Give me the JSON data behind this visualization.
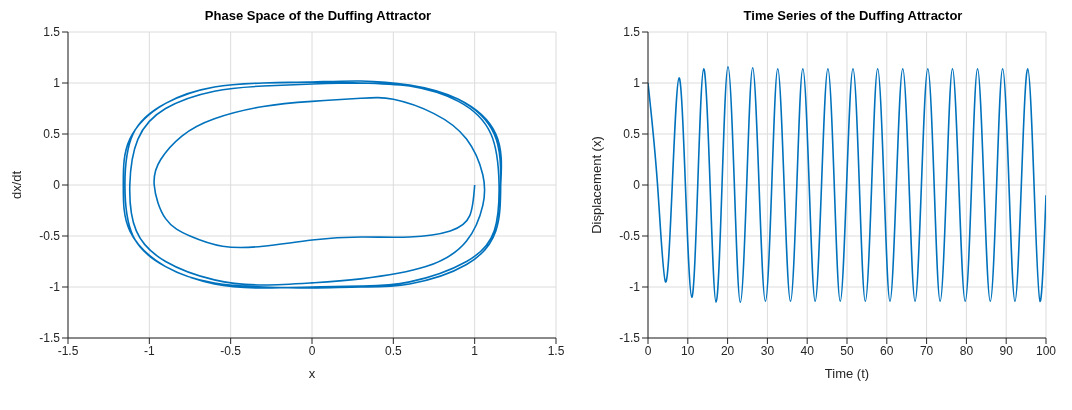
{
  "chart_data": [
    {
      "type": "line",
      "title": "Phase Space of the Duffing Attractor",
      "xlabel": "x",
      "ylabel": "dx/dt",
      "xlim": [
        -1.5,
        1.5
      ],
      "ylim": [
        -1.5,
        1.5
      ],
      "xticks": [
        -1.5,
        -1,
        -0.5,
        0,
        0.5,
        1,
        1.5
      ],
      "yticks": [
        -1.5,
        -1,
        -0.5,
        0,
        0.5,
        1,
        1.5
      ],
      "grid": true,
      "series": [
        {
          "color": "#0072bd",
          "x": [
            1,
            0.97,
            0.85,
            0.6,
            0.3,
            0,
            -0.3,
            -0.55,
            -0.75,
            -0.9,
            -0.97,
            -0.93,
            -0.8,
            -0.6,
            -0.3,
            0,
            0.3,
            0.5,
            0.75,
            0.95,
            1.05,
            1.05,
            0.95,
            0.7,
            0.3,
            0,
            -0.3,
            -0.6,
            -0.9,
            -1.08,
            -1.12,
            -1.07,
            -0.9,
            -0.6,
            -0.3,
            0,
            0.3,
            0.6,
            0.9,
            1.1,
            1.15,
            1.12,
            0.95,
            0.6,
            0.3,
            0,
            -0.3,
            -0.6,
            -0.9,
            -1.1,
            -1.15,
            -1.1,
            -0.9,
            -0.6,
            -0.3,
            0,
            0.3,
            0.6,
            0.9,
            1.12,
            1.16,
            1.13,
            0.95,
            0.6,
            0.3,
            0,
            -0.3,
            -0.6,
            -0.9,
            -1.12,
            -1.16,
            -1.12,
            -0.9,
            -0.6,
            -0.3,
            0,
            0.3,
            0.6,
            0.9,
            1.13,
            1.16
          ],
          "values": [
            0,
            -0.3,
            -0.45,
            -0.51,
            -0.51,
            -0.54,
            -0.6,
            -0.6,
            -0.5,
            -0.33,
            0,
            0.25,
            0.48,
            0.65,
            0.77,
            0.82,
            0.85,
            0.84,
            0.7,
            0.45,
            0.1,
            -0.2,
            -0.55,
            -0.8,
            -0.92,
            -0.96,
            -0.98,
            -0.93,
            -0.75,
            -0.45,
            0,
            0.45,
            0.75,
            0.92,
            0.97,
            0.99,
            1,
            0.97,
            0.82,
            0.5,
            0,
            -0.45,
            -0.75,
            -0.95,
            -0.99,
            -1,
            -1.01,
            -0.97,
            -0.8,
            -0.5,
            0,
            0.5,
            0.8,
            0.96,
            1,
            1.01,
            1.02,
            0.98,
            0.84,
            0.5,
            0,
            -0.45,
            -0.78,
            -0.97,
            -1,
            -1.01,
            -1,
            -0.96,
            -0.8,
            -0.45,
            0,
            0.45,
            0.8,
            0.96,
            1,
            1.01,
            1,
            0.97,
            0.84,
            0.5,
            0
          ]
        }
      ]
    },
    {
      "type": "line",
      "title": "Time Series of the Duffing Attractor",
      "xlabel": "Time (t)",
      "ylabel": "Displacement (x)",
      "xlim": [
        0,
        100
      ],
      "ylim": [
        -1.5,
        1.5
      ],
      "xticks": [
        0,
        10,
        20,
        30,
        40,
        50,
        60,
        70,
        80,
        90,
        100
      ],
      "yticks": [
        -1.5,
        -1,
        -0.5,
        0,
        0.5,
        1,
        1.5
      ],
      "grid": true,
      "series": [
        {
          "color": "#0072bd",
          "x": [
            0,
            2.4,
            4.4,
            6.1,
            7.8,
            9.4,
            11,
            12.5,
            14,
            15.6,
            17.1,
            18.6,
            20.1,
            21.7,
            23.2,
            24.8,
            26.3,
            27.9,
            29.5,
            31.1,
            32.6,
            34.2,
            35.8,
            37.4,
            38.9,
            40.5,
            42,
            43.6,
            45.2,
            46.8,
            48.3,
            49.9,
            51.5,
            53.1,
            54.6,
            56.2,
            57.7,
            59.3,
            60.8,
            62.4,
            64,
            65.6,
            67.1,
            68.7,
            70.3,
            71.9,
            73.4,
            75,
            76.5,
            78.1,
            79.7,
            81.3,
            82.8,
            84.4,
            86,
            87.6,
            89.1,
            90.7,
            92.2,
            93.8,
            95.4,
            97,
            98.5,
            100
          ],
          "values": [
            1,
            0,
            -0.95,
            0,
            1.05,
            0,
            -1.1,
            0,
            1.14,
            0,
            -1.15,
            0,
            1.16,
            0,
            -1.15,
            0,
            1.15,
            0,
            -1.14,
            0,
            1.14,
            0,
            -1.14,
            0,
            1.14,
            0,
            -1.14,
            0,
            1.14,
            0,
            -1.14,
            0,
            1.14,
            0,
            -1.14,
            0,
            1.14,
            0,
            -1.14,
            0,
            1.14,
            0,
            -1.14,
            0,
            1.14,
            0,
            -1.14,
            0,
            1.14,
            0,
            -1.14,
            0,
            1.14,
            0,
            -1.14,
            0,
            1.14,
            0,
            -1.14,
            0,
            1.14,
            0,
            -1.14,
            -0.1
          ]
        }
      ]
    }
  ]
}
